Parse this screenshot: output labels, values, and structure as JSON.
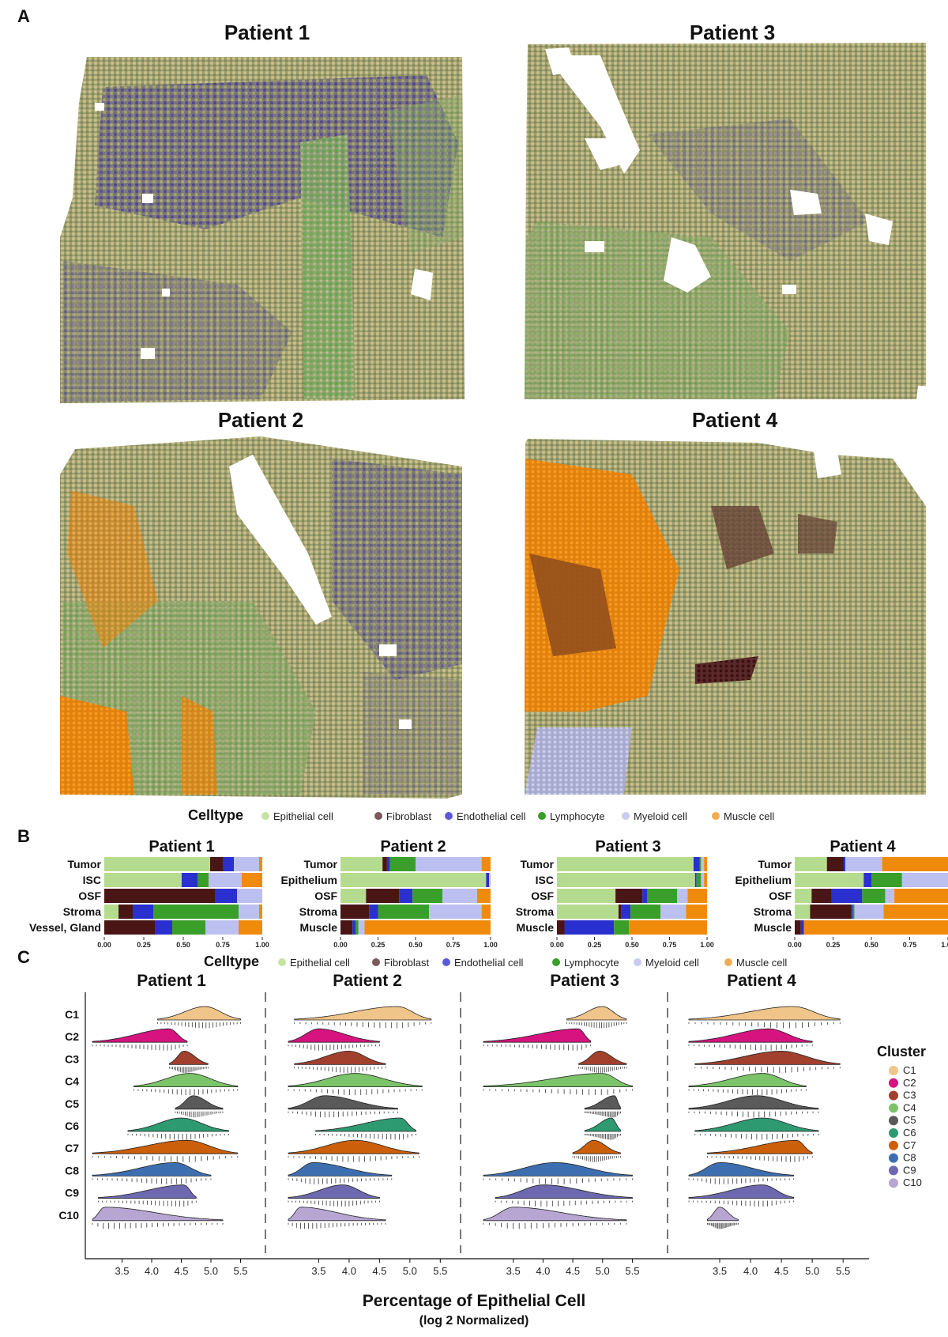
{
  "panel_labels": [
    "A",
    "B",
    "C"
  ],
  "colors": {
    "Epithelial cell": "#b5dc8e",
    "Fibroblast": "#4a1515",
    "Endothelial cell": "#2a2fcf",
    "Lymphocyte": "#3a9e2a",
    "Myeloid cell": "#bcc0f0",
    "Muscle cell": "#f08a0a"
  },
  "legend_dots": {
    "Epithelial cell": "#c6e3a5",
    "Fibroblast": "#7a5a5a",
    "Endothelial cell": "#5a5ad8",
    "Lymphocyte": "#3a9e2a",
    "Myeloid cell": "#c9ccf0",
    "Muscle cell": "#f0ac55"
  },
  "panel_a": {
    "legend_title": "Celltype",
    "legend_items": [
      "Epithelial cell",
      "Fibroblast",
      "Endothelial cell",
      "Lymphocyte",
      "Myeloid cell",
      "Muscle cell"
    ],
    "maps": [
      {
        "title": "Patient 1"
      },
      {
        "title": "Patient 3"
      },
      {
        "title": "Patient 2"
      },
      {
        "title": "Patient 4"
      }
    ]
  },
  "chart_data": [
    {
      "type": "bar",
      "panel": "B",
      "legend_title": "Celltype",
      "celltypes": [
        "Epithelial cell",
        "Fibroblast",
        "Endothelial cell",
        "Lymphocyte",
        "Myeloid cell",
        "Muscle cell"
      ],
      "xlim": [
        0,
        1
      ],
      "xticks": [
        "0.00",
        "0.25",
        "0.50",
        "0.75",
        "1.00"
      ],
      "patients": [
        {
          "title": "Patient 1",
          "rows": [
            {
              "label": "Tumor",
              "values": [
                0.67,
                0.08,
                0.07,
                0.0,
                0.16,
                0.02
              ]
            },
            {
              "label": "ISC",
              "values": [
                0.49,
                0.0,
                0.1,
                0.07,
                0.21,
                0.13
              ]
            },
            {
              "label": "OSF",
              "values": [
                0.0,
                0.7,
                0.14,
                0.0,
                0.16,
                0.0
              ]
            },
            {
              "label": "Stroma",
              "values": [
                0.09,
                0.09,
                0.13,
                0.54,
                0.13,
                0.02
              ]
            },
            {
              "label": "Vessel, Gland",
              "values": [
                0.0,
                0.32,
                0.11,
                0.21,
                0.21,
                0.15
              ]
            }
          ]
        },
        {
          "title": "Patient 2",
          "rows": [
            {
              "label": "Tumor",
              "values": [
                0.28,
                0.03,
                0.02,
                0.17,
                0.44,
                0.06
              ]
            },
            {
              "label": "Epithelium",
              "values": [
                0.97,
                0.0,
                0.02,
                0.0,
                0.01,
                0.0
              ]
            },
            {
              "label": "OSF",
              "values": [
                0.17,
                0.22,
                0.09,
                0.2,
                0.23,
                0.09
              ]
            },
            {
              "label": "Stroma",
              "values": [
                0.0,
                0.19,
                0.06,
                0.34,
                0.35,
                0.06
              ]
            },
            {
              "label": "Muscle",
              "values": [
                0.0,
                0.08,
                0.02,
                0.02,
                0.04,
                0.84
              ]
            }
          ]
        },
        {
          "title": "Patient 3",
          "rows": [
            {
              "label": "Tumor",
              "values": [
                0.91,
                0.0,
                0.04,
                0.01,
                0.02,
                0.02
              ]
            },
            {
              "label": "ISC",
              "values": [
                0.92,
                0.0,
                0.01,
                0.03,
                0.02,
                0.02
              ]
            },
            {
              "label": "OSF",
              "values": [
                0.39,
                0.18,
                0.03,
                0.2,
                0.07,
                0.13
              ]
            },
            {
              "label": "Stroma",
              "values": [
                0.41,
                0.02,
                0.06,
                0.2,
                0.17,
                0.14
              ]
            },
            {
              "label": "Muscle",
              "values": [
                0.0,
                0.05,
                0.33,
                0.1,
                0.0,
                0.52
              ]
            }
          ]
        },
        {
          "title": "Patient 4",
          "rows": [
            {
              "label": "Tumor",
              "values": [
                0.21,
                0.11,
                0.01,
                0.0,
                0.24,
                0.43
              ]
            },
            {
              "label": "Epithelium",
              "values": [
                0.45,
                0.0,
                0.05,
                0.2,
                0.3,
                0.0
              ]
            },
            {
              "label": "OSF",
              "values": [
                0.11,
                0.13,
                0.2,
                0.15,
                0.06,
                0.35
              ]
            },
            {
              "label": "Stroma",
              "values": [
                0.1,
                0.27,
                0.01,
                0.01,
                0.19,
                0.42
              ]
            },
            {
              "label": "Muscle",
              "values": [
                0.0,
                0.04,
                0.02,
                0.0,
                0.0,
                0.94
              ]
            }
          ]
        }
      ]
    },
    {
      "type": "ridgeline",
      "panel": "C",
      "xlabel": "Percentage of Epithelial Cell",
      "xlabel_sub": "(log 2 Normalized)",
      "xlim": [
        3.0,
        5.6
      ],
      "xticks": [
        "3.5",
        "4.0",
        "4.5",
        "5.0",
        "5.5"
      ],
      "clusters": [
        "C1",
        "C2",
        "C3",
        "C4",
        "C5",
        "C6",
        "C7",
        "C8",
        "C9",
        "C10"
      ],
      "cluster_colors": [
        "#f0c58a",
        "#d6137f",
        "#a0402d",
        "#7cc46a",
        "#5a5a5a",
        "#2e9a72",
        "#cc5f0a",
        "#3d6fb0",
        "#6d68b0",
        "#b8a6d2"
      ],
      "legend_title": "Cluster",
      "patients": [
        {
          "title": "Patient 1",
          "ranges": [
            [
              4.1,
              5.5,
              4.9
            ],
            [
              3.0,
              4.6,
              4.3
            ],
            [
              4.3,
              4.95,
              4.55
            ],
            [
              3.7,
              5.45,
              4.65
            ],
            [
              4.4,
              5.2,
              4.7
            ],
            [
              3.6,
              5.3,
              4.5
            ],
            [
              3.0,
              5.45,
              4.6
            ],
            [
              3.0,
              5.0,
              4.4
            ],
            [
              3.1,
              4.75,
              4.55
            ],
            [
              3.0,
              5.2,
              3.2
            ]
          ]
        },
        {
          "title": "Patient 2",
          "ranges": [
            [
              3.1,
              5.35,
              4.8
            ],
            [
              3.0,
              4.5,
              3.5
            ],
            [
              3.1,
              4.6,
              4.0
            ],
            [
              3.0,
              5.2,
              4.1
            ],
            [
              3.0,
              4.8,
              3.6
            ],
            [
              3.45,
              5.1,
              4.85
            ],
            [
              3.0,
              5.15,
              4.1
            ],
            [
              3.0,
              4.7,
              3.4
            ],
            [
              3.0,
              4.5,
              3.9
            ],
            [
              3.0,
              4.6,
              3.2
            ]
          ]
        },
        {
          "title": "Patient 3",
          "ranges": [
            [
              4.4,
              5.4,
              5.0
            ],
            [
              3.0,
              4.8,
              4.6
            ],
            [
              4.6,
              5.4,
              4.95
            ],
            [
              3.0,
              5.5,
              5.0
            ],
            [
              4.7,
              5.3,
              5.2
            ],
            [
              4.7,
              5.3,
              5.15
            ],
            [
              4.5,
              5.3,
              4.85
            ],
            [
              3.0,
              5.5,
              4.2
            ],
            [
              3.2,
              5.5,
              4.0
            ],
            [
              3.0,
              5.4,
              3.5
            ]
          ]
        },
        {
          "title": "Patient 4",
          "ranges": [
            [
              3.0,
              5.45,
              4.7
            ],
            [
              3.0,
              5.0,
              4.3
            ],
            [
              3.1,
              5.45,
              4.5
            ],
            [
              3.0,
              4.9,
              4.2
            ],
            [
              3.0,
              5.1,
              4.1
            ],
            [
              3.1,
              5.1,
              4.2
            ],
            [
              3.3,
              5.0,
              4.75
            ],
            [
              3.0,
              4.7,
              3.5
            ],
            [
              3.0,
              4.7,
              4.2
            ],
            [
              3.3,
              3.8,
              3.5
            ]
          ]
        }
      ]
    }
  ]
}
